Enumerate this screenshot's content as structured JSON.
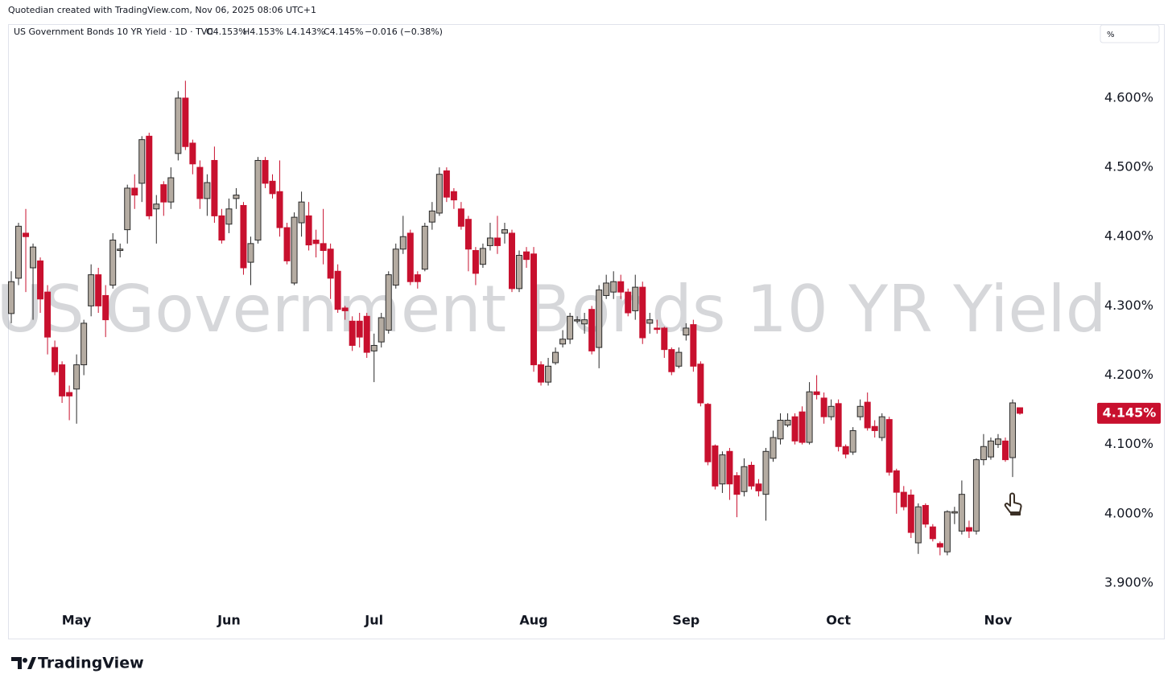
{
  "header_note": "Quotedian created with TradingView.com, Nov 06, 2025 08:06 UTC+1",
  "branding": "TradingView",
  "chart_data": {
    "type": "candlestick",
    "symbol_line": "US Government Bonds 10 YR Yield · 1D · TVC",
    "ohlc": [
      "O4.153%",
      "H4.153%",
      "L4.143%",
      "C4.145%",
      "−0.016 (−0.38%)"
    ],
    "watermark": "US Government Bonds 10 YR Yield",
    "axis_unit": "%",
    "last_price": {
      "value": 4.145,
      "label": "4.145%"
    },
    "up_color": "#b5aca2",
    "up_border": "#2a2a2a",
    "down_color": "#c8102e",
    "grid": false,
    "ylim": [
      3.86,
      4.71
    ],
    "yticks": [
      {
        "value": 3.9,
        "label": "3.900%"
      },
      {
        "value": 4.0,
        "label": "4.000%"
      },
      {
        "value": 4.1,
        "label": "4.100%"
      },
      {
        "value": 4.2,
        "label": "4.200%"
      },
      {
        "value": 4.3,
        "label": "4.300%"
      },
      {
        "value": 4.4,
        "label": "4.400%"
      },
      {
        "value": 4.5,
        "label": "4.500%"
      },
      {
        "value": 4.6,
        "label": "4.600%"
      }
    ],
    "categories": [
      null,
      null,
      null,
      null,
      null,
      null,
      null,
      null,
      null,
      "May",
      null,
      null,
      null,
      null,
      null,
      null,
      null,
      null,
      null,
      null,
      null,
      null,
      null,
      null,
      null,
      null,
      null,
      null,
      null,
      null,
      "Jun",
      null,
      null,
      null,
      null,
      null,
      null,
      null,
      null,
      null,
      null,
      null,
      null,
      null,
      null,
      null,
      null,
      null,
      null,
      null,
      "Jul",
      null,
      null,
      null,
      null,
      null,
      null,
      null,
      null,
      null,
      null,
      null,
      null,
      null,
      null,
      null,
      null,
      null,
      null,
      null,
      null,
      null,
      "Aug",
      null,
      null,
      null,
      null,
      null,
      null,
      null,
      null,
      null,
      null,
      null,
      null,
      null,
      null,
      null,
      null,
      null,
      null,
      null,
      null,
      "Sep",
      null,
      null,
      null,
      null,
      null,
      null,
      null,
      null,
      null,
      null,
      null,
      null,
      null,
      null,
      null,
      null,
      null,
      null,
      null,
      null,
      "Oct",
      null,
      null,
      null,
      null,
      null,
      null,
      null,
      null,
      null,
      null,
      null,
      null,
      null,
      null,
      null,
      null,
      null,
      null,
      null,
      null,
      null,
      "Nov",
      null,
      null,
      null
    ],
    "open": [
      4.289,
      4.34,
      4.405,
      4.355,
      4.365,
      4.32,
      4.24,
      4.215,
      4.175,
      4.18,
      4.215,
      4.3,
      4.345,
      4.315,
      4.33,
      4.38,
      4.41,
      4.47,
      4.477,
      4.545,
      4.44,
      4.475,
      4.45,
      4.52,
      4.6,
      4.535,
      4.5,
      4.455,
      4.51,
      4.43,
      4.418,
      4.455,
      4.445,
      4.363,
      4.395,
      4.51,
      4.48,
      4.465,
      4.413,
      4.333,
      4.42,
      4.43,
      4.395,
      4.39,
      4.382,
      4.35,
      4.297,
      4.278,
      4.278,
      4.285,
      4.235,
      4.248,
      4.265,
      4.33,
      4.382,
      4.405,
      4.345,
      4.353,
      4.421,
      4.434,
      4.495,
      4.465,
      4.44,
      4.425,
      4.38,
      4.36,
      4.387,
      4.398,
      4.405,
      4.405,
      4.325,
      4.378,
      4.375,
      4.215,
      4.19,
      4.218,
      4.245,
      4.252,
      4.279,
      4.274,
      4.295,
      4.24,
      4.315,
      4.32,
      4.335,
      4.32,
      4.293,
      4.327,
      4.275,
      4.268,
      4.268,
      4.237,
      4.213,
      4.258,
      4.273,
      4.216,
      4.158,
      4.098,
      4.043,
      4.09,
      4.055,
      4.032,
      4.07,
      4.043,
      4.028,
      4.08,
      4.108,
      4.128,
      4.14,
      4.147,
      4.103,
      4.176,
      4.167,
      4.14,
      4.159,
      4.097,
      4.089,
      4.14,
      4.161,
      4.126,
      4.11,
      4.136,
      4.062,
      4.031,
      4.027,
      3.958,
      4.012,
      3.981,
      3.957,
      3.945,
      4.001,
      3.975,
      3.98,
      3.975,
      4.078,
      4.082,
      4.1,
      4.105,
      4.081,
      4.153
    ],
    "high": [
      4.35,
      4.42,
      4.44,
      4.39,
      4.37,
      4.33,
      4.25,
      4.22,
      4.185,
      4.23,
      4.28,
      4.36,
      4.355,
      4.33,
      4.405,
      4.39,
      4.475,
      4.49,
      4.545,
      4.55,
      4.46,
      4.48,
      4.5,
      4.61,
      4.625,
      4.54,
      4.51,
      4.49,
      4.53,
      4.44,
      4.455,
      4.47,
      4.45,
      4.4,
      4.515,
      4.515,
      4.49,
      4.51,
      4.42,
      4.435,
      4.465,
      4.45,
      4.41,
      4.44,
      4.39,
      4.36,
      4.3,
      4.285,
      4.29,
      4.29,
      4.26,
      4.29,
      4.35,
      4.39,
      4.43,
      4.41,
      4.35,
      4.42,
      4.45,
      4.5,
      4.5,
      4.47,
      4.45,
      4.43,
      4.385,
      4.39,
      4.42,
      4.43,
      4.42,
      4.41,
      4.38,
      4.385,
      4.385,
      4.22,
      4.225,
      4.24,
      4.265,
      4.29,
      4.285,
      4.29,
      4.3,
      4.33,
      4.345,
      4.35,
      4.345,
      4.325,
      4.345,
      4.335,
      4.29,
      4.28,
      4.27,
      4.24,
      4.24,
      4.275,
      4.28,
      4.22,
      4.16,
      4.1,
      4.09,
      4.095,
      4.06,
      4.08,
      4.075,
      4.05,
      4.095,
      4.12,
      4.145,
      4.145,
      4.145,
      4.155,
      4.19,
      4.2,
      4.175,
      4.165,
      4.165,
      4.1,
      4.125,
      4.165,
      4.175,
      4.135,
      4.145,
      4.14,
      4.065,
      4.04,
      4.035,
      4.015,
      4.015,
      3.985,
      3.96,
      4.005,
      4.01,
      4.048,
      3.99,
      4.08,
      4.115,
      4.11,
      4.115,
      4.11,
      4.165,
      4.153
    ],
    "low": [
      4.275,
      4.33,
      4.32,
      4.28,
      4.29,
      4.23,
      4.2,
      4.16,
      4.135,
      4.13,
      4.2,
      4.285,
      4.29,
      4.255,
      4.325,
      4.37,
      4.39,
      4.44,
      4.45,
      4.425,
      4.39,
      4.43,
      4.44,
      4.51,
      4.525,
      4.49,
      4.44,
      4.43,
      4.42,
      4.39,
      4.405,
      4.44,
      4.345,
      4.33,
      4.39,
      4.47,
      4.455,
      4.4,
      4.36,
      4.33,
      4.4,
      4.38,
      4.37,
      4.36,
      4.31,
      4.29,
      4.28,
      4.235,
      4.24,
      4.225,
      4.19,
      4.24,
      4.26,
      4.325,
      4.375,
      4.33,
      4.325,
      4.35,
      4.41,
      4.43,
      4.45,
      4.44,
      4.41,
      4.35,
      4.33,
      4.355,
      4.38,
      4.375,
      4.39,
      4.32,
      4.32,
      4.355,
      4.205,
      4.185,
      4.185,
      4.215,
      4.24,
      4.245,
      4.275,
      4.26,
      4.23,
      4.21,
      4.31,
      4.31,
      4.31,
      4.285,
      4.28,
      4.245,
      4.26,
      4.26,
      4.225,
      4.2,
      4.21,
      4.25,
      4.205,
      4.155,
      4.07,
      4.035,
      4.03,
      4.02,
      3.995,
      4.025,
      4.035,
      4.025,
      3.99,
      4.075,
      4.1,
      4.125,
      4.1,
      4.1,
      4.1,
      4.165,
      4.13,
      4.135,
      4.09,
      4.08,
      4.085,
      4.135,
      4.12,
      4.11,
      4.105,
      4.055,
      4.0,
      4.005,
      3.965,
      3.942,
      3.98,
      3.96,
      3.94,
      3.94,
      3.985,
      3.97,
      3.965,
      3.97,
      4.07,
      4.078,
      4.095,
      4.075,
      4.053,
      4.143
    ],
    "close": [
      4.335,
      4.415,
      4.4,
      4.385,
      4.31,
      4.255,
      4.205,
      4.17,
      4.17,
      4.215,
      4.275,
      4.345,
      4.3,
      4.28,
      4.395,
      4.382,
      4.47,
      4.46,
      4.54,
      4.43,
      4.447,
      4.45,
      4.485,
      4.6,
      4.53,
      4.505,
      4.455,
      4.478,
      4.43,
      4.395,
      4.44,
      4.46,
      4.355,
      4.39,
      4.51,
      4.477,
      4.462,
      4.413,
      4.365,
      4.428,
      4.45,
      4.388,
      4.39,
      4.38,
      4.34,
      4.295,
      4.293,
      4.243,
      4.255,
      4.233,
      4.243,
      4.283,
      4.345,
      4.382,
      4.4,
      4.335,
      4.335,
      4.415,
      4.437,
      4.49,
      4.457,
      4.453,
      4.415,
      4.382,
      4.347,
      4.383,
      4.398,
      4.387,
      4.41,
      4.325,
      4.373,
      4.367,
      4.215,
      4.19,
      4.213,
      4.233,
      4.252,
      4.285,
      4.28,
      4.28,
      4.235,
      4.323,
      4.333,
      4.335,
      4.32,
      4.29,
      4.327,
      4.254,
      4.28,
      4.266,
      4.237,
      4.205,
      4.233,
      4.268,
      4.213,
      4.16,
      4.075,
      4.04,
      4.085,
      4.043,
      4.028,
      4.068,
      4.04,
      4.033,
      4.09,
      4.11,
      4.135,
      4.135,
      4.105,
      4.103,
      4.176,
      4.172,
      4.14,
      4.155,
      4.097,
      4.086,
      4.12,
      4.155,
      4.124,
      4.12,
      4.14,
      4.06,
      4.031,
      4.01,
      3.973,
      4.01,
      3.985,
      3.964,
      3.952,
      4.003,
      4.003,
      4.028,
      3.975,
      4.078,
      4.097,
      4.105,
      4.108,
      4.078,
      4.16,
      4.145
    ]
  }
}
